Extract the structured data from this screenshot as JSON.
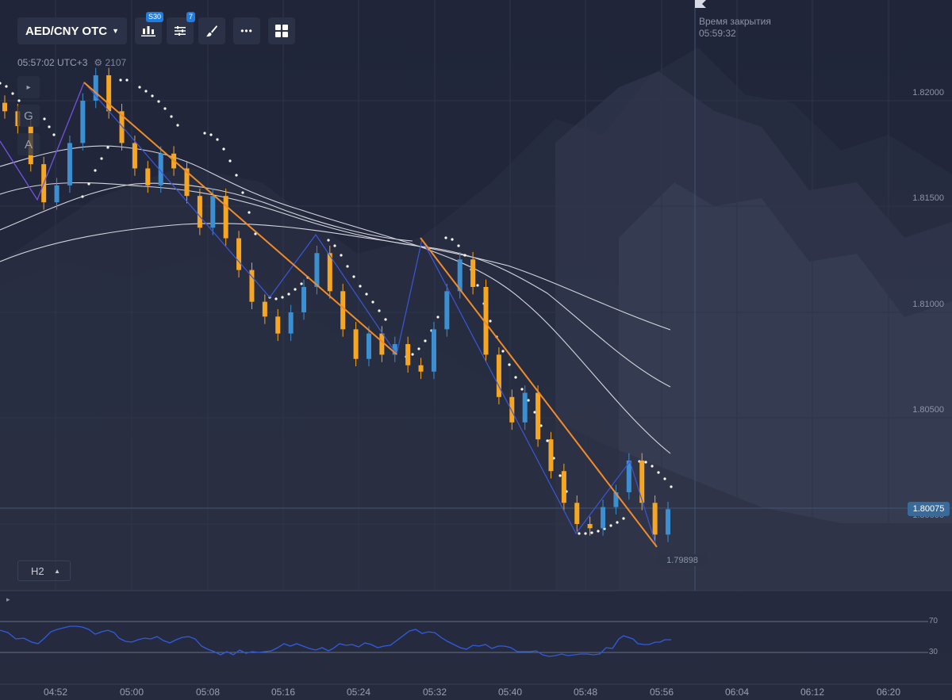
{
  "toolbar": {
    "pair_label": "AED/CNY OTC",
    "chart_type_badge": "S30",
    "indicators_badge": "7",
    "icons": [
      "candles-icon",
      "sliders-icon",
      "brush-icon",
      "more-icon",
      "grid-icon"
    ]
  },
  "server_time": "05:57:02 UTC+3",
  "online_users": "2107",
  "left_tools": [
    "▸",
    "G",
    "A"
  ],
  "close_time": {
    "label": "Время закрытия",
    "value": "05:59:32"
  },
  "price_axis": [
    "1.82000",
    "1.81500",
    "1.81000",
    "1.80500",
    "1.80000"
  ],
  "current_price": "1.80075",
  "min_price": "1.79898",
  "timeframe": "H2",
  "rsi_levels": [
    "70",
    "30"
  ],
  "time_axis": [
    "04:52",
    "05:00",
    "05:08",
    "05:16",
    "05:24",
    "05:32",
    "05:40",
    "05:48",
    "05:56",
    "06:04",
    "06:12",
    "06:20"
  ],
  "colors": {
    "bull": "#3c8fd0",
    "bear": "#f5a623",
    "trend": "#f08c2a",
    "zigzag": "#3a57d8",
    "rsi": "#2f5ce0",
    "ma": "#e8e8ee"
  },
  "chart_data": {
    "type": "candlestick",
    "ylim": [
      1.796,
      1.8225
    ],
    "candles_close_approx": [
      1.8195,
      1.8188,
      1.817,
      1.8152,
      1.816,
      1.818,
      1.82,
      1.8212,
      1.8195,
      1.818,
      1.8168,
      1.816,
      1.8175,
      1.8168,
      1.8155,
      1.814,
      1.8155,
      1.8135,
      1.812,
      1.8105,
      1.8098,
      1.809,
      1.81,
      1.8112,
      1.8128,
      1.811,
      1.8092,
      1.8078,
      1.809,
      1.808,
      1.8085,
      1.8075,
      1.8072,
      1.8092,
      1.811,
      1.8125,
      1.8112,
      1.808,
      1.806,
      1.8048,
      1.8062,
      1.804,
      1.8025,
      1.801,
      1.8,
      1.7998,
      1.8008,
      1.8015,
      1.803,
      1.801,
      1.7995,
      1.8007
    ],
    "current_price": 1.80075,
    "min_price": 1.79898
  }
}
